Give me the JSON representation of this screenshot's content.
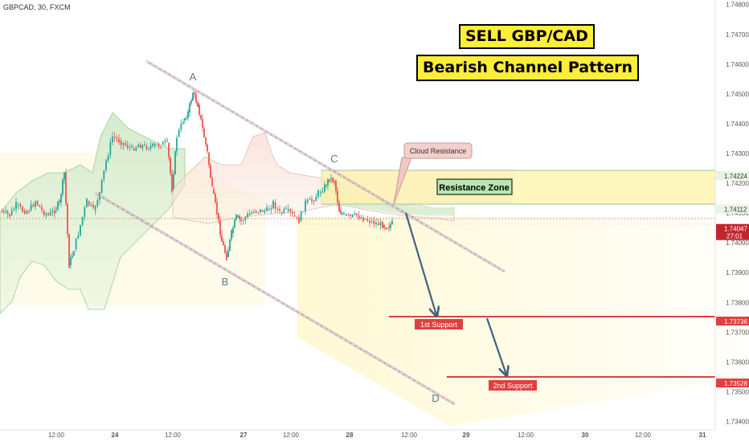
{
  "symbol": "GBPCAD, 30, FXCM",
  "title": "SELL GBP/CAD",
  "subtitle": "Bearish Channel Pattern",
  "chart_data": {
    "type": "line",
    "y_ticks": [
      "1.74800",
      "1.74700",
      "1.74600",
      "1.74500",
      "1.74400",
      "1.74300",
      "1.74200",
      "1.74100",
      "1.74000",
      "1.73900",
      "1.73800",
      "1.73700",
      "1.73600",
      "1.73500",
      "1.73400"
    ],
    "ylim": [
      1.7335,
      1.7481
    ],
    "x_ticks": [
      "12:00",
      "24",
      "12:00",
      "27",
      "12:00",
      "28",
      "12:00",
      "29",
      "12:00",
      "30",
      "12:00",
      "31"
    ],
    "price_labels": [
      {
        "text": "1.74224",
        "value": 1.74224,
        "color": "#e8f3e4",
        "text_color": "#333333"
      },
      {
        "text": "1.74112",
        "value": 1.74112,
        "color": "#e8f3e4",
        "text_color": "#333333"
      },
      {
        "text": "1.74047",
        "value": 1.74047,
        "color": "#c0272d",
        "text_color": "#ffffff",
        "sub": "27:01"
      },
      {
        "text": "1.73736",
        "value": 1.73736,
        "color": "#e0403f",
        "text_color": "#ffffff"
      },
      {
        "text": "1.73528",
        "value": 1.73528,
        "color": "#e0403f",
        "text_color": "#ffffff"
      }
    ],
    "points": [
      {
        "label": "A",
        "value": 1.7451
      },
      {
        "label": "B",
        "value": 1.739
      },
      {
        "label": "C",
        "value": 1.7423
      },
      {
        "label": "D",
        "value": 1.7349
      }
    ],
    "annotations": {
      "cloud_resistance": "Cloud Resistance",
      "resistance_zone": "Resistance Zone",
      "support1": "1st Support",
      "support2": "2nd Support"
    },
    "colors": {
      "up": "#26a69a",
      "down": "#ef5350",
      "channel": "#a07c9a",
      "support": "#e0403f",
      "arrow": "#41627a"
    }
  }
}
